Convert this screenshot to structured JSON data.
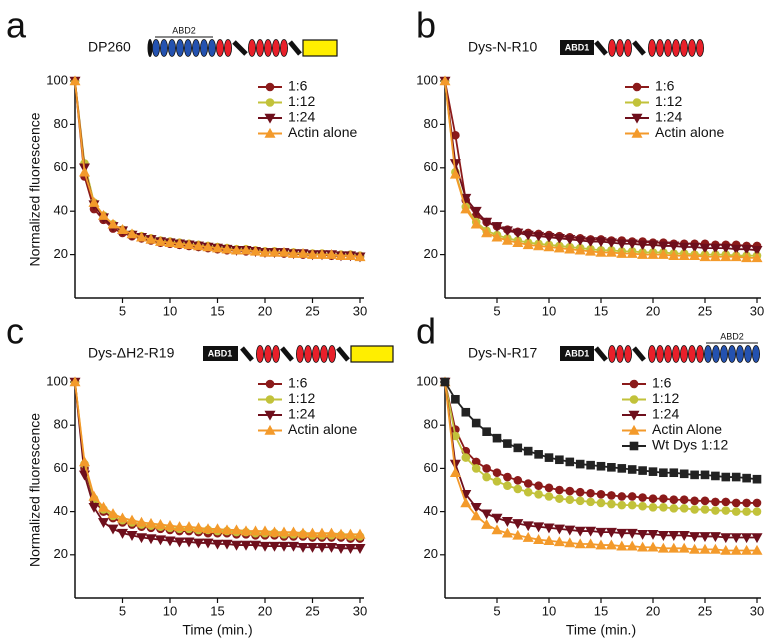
{
  "chart_data": [
    {
      "type": "line",
      "panel_label": "a",
      "construct": "DP260",
      "domain_labels": [
        "ABD2"
      ],
      "y_label": "Normalized fluorescence",
      "x": [
        0,
        1,
        2,
        3,
        4,
        5,
        6,
        7,
        8,
        9,
        10,
        11,
        12,
        13,
        14,
        15,
        16,
        17,
        18,
        19,
        20,
        21,
        22,
        23,
        24,
        25,
        26,
        27,
        28,
        29,
        30
      ],
      "xlim": [
        0,
        30
      ],
      "ylim": [
        0,
        100
      ],
      "xticks": [
        5,
        10,
        15,
        20,
        25,
        30
      ],
      "yticks": [
        20,
        40,
        60,
        80,
        100
      ],
      "series": [
        {
          "name": "1:6",
          "color": "#8b1a1a",
          "marker": "circle",
          "values": [
            100,
            56,
            41,
            36,
            32,
            30,
            28.5,
            27.5,
            26.5,
            25.5,
            25,
            24.5,
            24,
            23.5,
            23,
            22.5,
            22,
            22,
            21.5,
            21.5,
            21,
            21,
            20.5,
            20.5,
            20,
            20,
            20,
            19.5,
            19.5,
            19.5,
            19
          ]
        },
        {
          "name": "1:12",
          "color": "#c2c23a",
          "marker": "circle",
          "values": [
            100,
            62,
            44,
            38,
            34,
            31.5,
            29.5,
            28.5,
            27.5,
            26.5,
            26,
            25.5,
            25,
            24.5,
            24,
            23.5,
            23,
            22.5,
            22.5,
            22,
            21.5,
            21.5,
            21,
            21,
            20.5,
            20.5,
            20.5,
            20,
            20,
            20,
            19.5
          ]
        },
        {
          "name": "1:24",
          "color": "#6e0f1c",
          "marker": "tri-down",
          "values": [
            100,
            60,
            43,
            37,
            33,
            31,
            29,
            28,
            27,
            26,
            25.5,
            25,
            24.5,
            24,
            23.5,
            23,
            22.5,
            22,
            22,
            21.5,
            21,
            21,
            21,
            20.5,
            20.5,
            20,
            20,
            20,
            19.5,
            19.5,
            19
          ]
        },
        {
          "name": "Actin alone",
          "color": "#f39a2b",
          "marker": "tri-up",
          "values": [
            100,
            58,
            44,
            38,
            34,
            31.5,
            29.5,
            28,
            27,
            26,
            25.5,
            25,
            24.5,
            24,
            23.5,
            23,
            22.5,
            22,
            22,
            21.5,
            21,
            21,
            21,
            20.5,
            20.5,
            20,
            20,
            20,
            19.5,
            19.5,
            19
          ]
        }
      ]
    },
    {
      "type": "line",
      "panel_label": "b",
      "construct": "Dys-N-R10",
      "domain_labels": [
        "ABD1"
      ],
      "x": [
        0,
        1,
        2,
        3,
        4,
        5,
        6,
        7,
        8,
        9,
        10,
        11,
        12,
        13,
        14,
        15,
        16,
        17,
        18,
        19,
        20,
        21,
        22,
        23,
        24,
        25,
        26,
        27,
        28,
        29,
        30
      ],
      "xlim": [
        0,
        30
      ],
      "ylim": [
        0,
        100
      ],
      "xticks": [
        5,
        10,
        15,
        20,
        25,
        30
      ],
      "yticks": [
        20,
        40,
        60,
        80,
        100
      ],
      "series": [
        {
          "name": "1:6",
          "color": "#8b1a1a",
          "marker": "circle",
          "values": [
            100,
            75,
            45,
            38,
            35,
            33,
            31.5,
            30.5,
            30,
            29.5,
            29,
            28.5,
            28,
            27.5,
            27,
            27,
            26.5,
            26.5,
            26,
            26,
            25.5,
            25.5,
            25,
            25,
            25,
            25,
            24.5,
            24.5,
            24.5,
            24,
            24
          ]
        },
        {
          "name": "1:12",
          "color": "#c2c23a",
          "marker": "circle",
          "values": [
            100,
            58,
            42,
            35,
            31,
            29,
            27.5,
            26.5,
            25.5,
            25,
            24.5,
            24,
            23.5,
            23,
            22.5,
            22,
            22,
            21.5,
            21.5,
            21,
            21,
            21,
            20.5,
            20.5,
            20,
            20,
            20,
            20,
            19.5,
            19.5,
            19.5
          ]
        },
        {
          "name": "1:24",
          "color": "#6e0f1c",
          "marker": "tri-down",
          "values": [
            100,
            62,
            46,
            40,
            35,
            33,
            31,
            30,
            29,
            28.5,
            28,
            27.5,
            27,
            26.5,
            26,
            26,
            25.5,
            25,
            25,
            24.5,
            24.5,
            24,
            24,
            23.5,
            23.5,
            23,
            23,
            23,
            22.5,
            22.5,
            22
          ]
        },
        {
          "name": "Actin alone",
          "color": "#f39a2b",
          "marker": "tri-up",
          "values": [
            100,
            57,
            41,
            34,
            30,
            28,
            26.5,
            25.5,
            24.5,
            24,
            23.5,
            23,
            22.5,
            22,
            21.5,
            21,
            21,
            20.5,
            20.5,
            20,
            20,
            20,
            19.5,
            19.5,
            19.5,
            19,
            19,
            19,
            19,
            18.5,
            18.5
          ]
        }
      ]
    },
    {
      "type": "line",
      "panel_label": "c",
      "construct": "Dys-ΔH2-R19",
      "domain_labels": [
        "ABD1"
      ],
      "y_label": "Normalized fluorescence",
      "x_label": "Time (min.)",
      "x": [
        0,
        1,
        2,
        3,
        4,
        5,
        6,
        7,
        8,
        9,
        10,
        11,
        12,
        13,
        14,
        15,
        16,
        17,
        18,
        19,
        20,
        21,
        22,
        23,
        24,
        25,
        26,
        27,
        28,
        29,
        30
      ],
      "xlim": [
        0,
        30
      ],
      "ylim": [
        0,
        100
      ],
      "xticks": [
        5,
        10,
        15,
        20,
        25,
        30
      ],
      "yticks": [
        20,
        40,
        60,
        80,
        100
      ],
      "series": [
        {
          "name": "1:6",
          "color": "#8b1a1a",
          "marker": "circle",
          "values": [
            100,
            60,
            45,
            40,
            37,
            35,
            34,
            33,
            32.5,
            32,
            31.5,
            31,
            31,
            30.5,
            30,
            30,
            30,
            29.5,
            29.5,
            29,
            29,
            29,
            28.5,
            28.5,
            28.5,
            28,
            28,
            28,
            28,
            27.5,
            27.5
          ]
        },
        {
          "name": "1:12",
          "color": "#c2c23a",
          "marker": "circle",
          "values": [
            100,
            62,
            46,
            41,
            38,
            36,
            35,
            34,
            33.5,
            33,
            32.5,
            32,
            32,
            31.5,
            31.5,
            31,
            31,
            30.5,
            30.5,
            30,
            30,
            30,
            29.5,
            29.5,
            29.5,
            29,
            29,
            29,
            29,
            28.5,
            28.5
          ]
        },
        {
          "name": "1:24",
          "color": "#6e0f1c",
          "marker": "tri-down",
          "values": [
            100,
            57,
            42,
            35,
            32,
            30,
            29,
            28,
            27.5,
            27,
            26.5,
            26,
            26,
            25.5,
            25.5,
            25,
            25,
            24.5,
            24.5,
            24.5,
            24,
            24,
            24,
            24,
            23.5,
            23.5,
            23.5,
            23.5,
            23,
            23,
            23
          ]
        },
        {
          "name": "Actin alone",
          "color": "#f39a2b",
          "marker": "tri-up",
          "values": [
            100,
            63,
            47,
            42,
            39,
            37,
            36,
            35,
            34.5,
            34,
            33.5,
            33,
            33,
            32.5,
            32,
            32,
            31.5,
            31.5,
            31,
            31,
            31,
            30.5,
            30.5,
            30.5,
            30,
            30,
            30,
            30,
            29.5,
            29.5,
            29.5
          ]
        }
      ]
    },
    {
      "type": "line",
      "panel_label": "d",
      "construct": "Dys-N-R17",
      "domain_labels": [
        "ABD1",
        "ABD2"
      ],
      "x_label": "Time (min.)",
      "x": [
        0,
        1,
        2,
        3,
        4,
        5,
        6,
        7,
        8,
        9,
        10,
        11,
        12,
        13,
        14,
        15,
        16,
        17,
        18,
        19,
        20,
        21,
        22,
        23,
        24,
        25,
        26,
        27,
        28,
        29,
        30
      ],
      "xlim": [
        0,
        30
      ],
      "ylim": [
        0,
        100
      ],
      "xticks": [
        5,
        10,
        15,
        20,
        25,
        30
      ],
      "yticks": [
        20,
        40,
        60,
        80,
        100
      ],
      "series": [
        {
          "name": "1:6",
          "color": "#8b1a1a",
          "marker": "circle",
          "values": [
            100,
            78,
            68,
            63,
            60,
            58,
            56,
            54.5,
            53,
            52,
            51,
            50,
            49.5,
            49,
            48.5,
            48,
            47.5,
            47,
            47,
            46.5,
            46,
            46,
            45.5,
            45.5,
            45,
            45,
            44.5,
            44.5,
            44,
            44,
            44
          ]
        },
        {
          "name": "1:12",
          "color": "#c2c23a",
          "marker": "circle",
          "values": [
            100,
            75,
            65,
            60,
            56,
            54,
            52,
            50.5,
            49,
            48,
            47,
            46,
            45.5,
            45,
            44.5,
            44,
            43.5,
            43,
            43,
            42.5,
            42,
            42,
            41.5,
            41.5,
            41,
            41,
            40.5,
            40.5,
            40,
            40,
            40
          ]
        },
        {
          "name": "1:24",
          "color": "#6e0f1c",
          "marker": "tri-down",
          "values": [
            100,
            62,
            48,
            42,
            39,
            37,
            35.5,
            34.5,
            33.5,
            33,
            32.5,
            32,
            31.5,
            31,
            31,
            30.5,
            30.5,
            30,
            30,
            29.5,
            29.5,
            29,
            29,
            29,
            28.5,
            28.5,
            28.5,
            28,
            28,
            28,
            28
          ]
        },
        {
          "name": "Actin Alone",
          "color": "#f39a2b",
          "marker": "tri-up",
          "values": [
            100,
            58,
            44,
            38,
            34,
            31.5,
            30,
            29,
            28,
            27,
            26.5,
            26,
            25.5,
            25,
            25,
            24.5,
            24.5,
            24,
            24,
            23.5,
            23.5,
            23,
            23,
            23,
            22.5,
            22.5,
            22.5,
            22,
            22,
            22,
            22
          ]
        },
        {
          "name": "Wt Dys 1:12",
          "color": "#222222",
          "marker": "square",
          "values": [
            100,
            92,
            86,
            81,
            77,
            74,
            71.5,
            69.5,
            68,
            66.5,
            65,
            64,
            63,
            62,
            61.5,
            61,
            60.5,
            60,
            59.5,
            59,
            58.5,
            58,
            58,
            57.5,
            57,
            57,
            56.5,
            56,
            56,
            55.5,
            55
          ]
        }
      ]
    }
  ]
}
